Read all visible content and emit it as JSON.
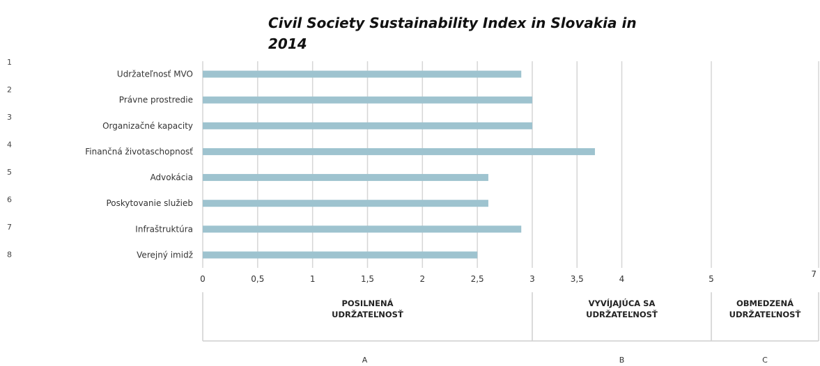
{
  "chart_data": {
    "type": "bar",
    "orientation": "horizontal",
    "title": [
      "Civil Society Sustainability Index in Slovakia in",
      "2014"
    ],
    "categories": [
      "Udržateľnosť MVO",
      "Právne prostredie",
      "Organizačné kapacity",
      "Finančná životaschopnosť",
      "Advokácia",
      "Poskytovanie služieb",
      "Infraštruktúra",
      "Verejný imidž"
    ],
    "row_numbers": [
      "1",
      "2",
      "3",
      "4",
      "5",
      "6",
      "7",
      "8"
    ],
    "values": [
      2.9,
      3.0,
      3.0,
      3.7,
      2.6,
      2.6,
      2.9,
      2.5
    ],
    "x_ticks": [
      {
        "value": 0,
        "label": "0"
      },
      {
        "value": 0.5,
        "label": "0,5"
      },
      {
        "value": 1,
        "label": "1"
      },
      {
        "value": 1.5,
        "label": "1,5"
      },
      {
        "value": 2,
        "label": "2"
      },
      {
        "value": 2.5,
        "label": "2,5"
      },
      {
        "value": 3,
        "label": "3"
      },
      {
        "value": 3.5,
        "label": "3,5"
      },
      {
        "value": 4,
        "label": "4"
      },
      {
        "value": 5,
        "label": "5"
      },
      {
        "value": 7,
        "label": "7"
      }
    ],
    "bands": [
      {
        "from": 0,
        "to": 3,
        "label_lines": [
          "POSILNENÁ",
          "UDRŽATEĽNOSŤ"
        ],
        "letter": "A"
      },
      {
        "from": 3,
        "to": 5,
        "label_lines": [
          "VYVÍJAJÚCA SA",
          "UDRŽATEĽNOSŤ"
        ],
        "letter": "B"
      },
      {
        "from": 5,
        "to": 7,
        "label_lines": [
          "OBMEDZENÁ",
          "UDRŽATEĽNOSŤ"
        ],
        "letter": "C"
      }
    ],
    "xlim": [
      0,
      7
    ],
    "grid": true,
    "colors": {
      "bar": "#9ec3cf",
      "grid": "#d6d6d6",
      "band_line": "#cfcfcf"
    }
  }
}
